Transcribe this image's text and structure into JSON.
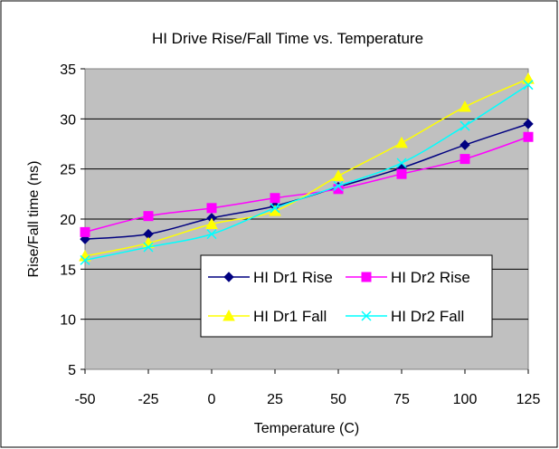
{
  "chart_data": {
    "type": "line",
    "title": "HI Drive Rise/Fall Time vs. Temperature",
    "xlabel": "Temperature (C)",
    "ylabel": "Rise/Fall time (ns)",
    "categories": [
      "-50",
      "-25",
      "0",
      "25",
      "50",
      "75",
      "100",
      "125"
    ],
    "ylim": [
      5,
      35
    ],
    "yticks": [
      "5",
      "10",
      "15",
      "20",
      "25",
      "30",
      "35"
    ],
    "grid": true,
    "legend": "lower-right",
    "series": [
      {
        "name": "HI Dr1 Rise",
        "color": "#000080",
        "marker": "diamond",
        "values": [
          18.0,
          18.5,
          20.1,
          21.3,
          23.2,
          25.1,
          27.4,
          29.5
        ]
      },
      {
        "name": "HI Dr2 Rise",
        "color": "#ff00ff",
        "marker": "square",
        "values": [
          18.7,
          20.3,
          21.1,
          22.1,
          23.0,
          24.5,
          26.0,
          28.2
        ]
      },
      {
        "name": "HI Dr1 Fall",
        "color": "#ffff00",
        "marker": "triangle",
        "values": [
          16.3,
          17.6,
          19.5,
          20.8,
          24.3,
          27.6,
          31.2,
          34.0
        ]
      },
      {
        "name": "HI Dr2 Fall",
        "color": "#00ffff",
        "marker": "x",
        "values": [
          15.9,
          17.2,
          18.5,
          21.1,
          23.3,
          25.6,
          29.3,
          33.4
        ]
      }
    ]
  }
}
